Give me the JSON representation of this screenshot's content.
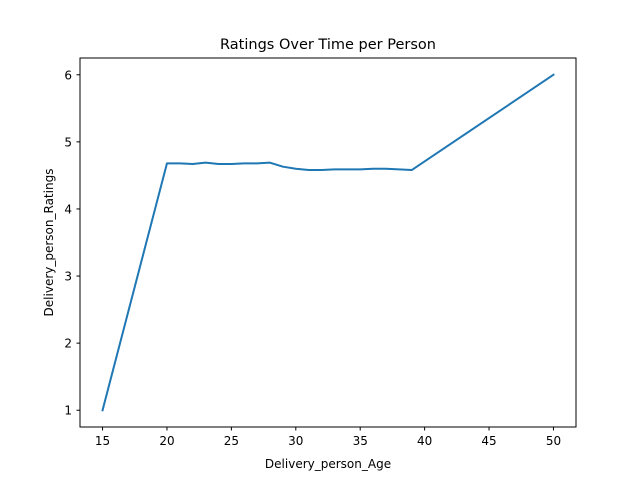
{
  "chart_data": {
    "type": "line",
    "title": "Ratings Over Time per Person",
    "xlabel": "Delivery_person_Age",
    "ylabel": "Delivery_person_Ratings",
    "xlim": [
      13.25,
      51.75
    ],
    "ylim": [
      0.75,
      6.25
    ],
    "xticks": [
      15,
      20,
      25,
      30,
      35,
      40,
      45,
      50
    ],
    "yticks": [
      1,
      2,
      3,
      4,
      5,
      6
    ],
    "grid": false,
    "color": "#1f77b4",
    "series": [
      {
        "name": "Delivery_person_Ratings",
        "x": [
          15,
          20,
          21,
          22,
          23,
          24,
          25,
          26,
          27,
          28,
          29,
          30,
          31,
          32,
          33,
          34,
          35,
          36,
          37,
          38,
          39,
          50
        ],
        "values": [
          1.0,
          4.68,
          4.68,
          4.67,
          4.69,
          4.67,
          4.67,
          4.68,
          4.68,
          4.69,
          4.63,
          4.6,
          4.58,
          4.58,
          4.59,
          4.59,
          4.59,
          4.6,
          4.6,
          4.59,
          4.58,
          6.0
        ]
      }
    ]
  }
}
